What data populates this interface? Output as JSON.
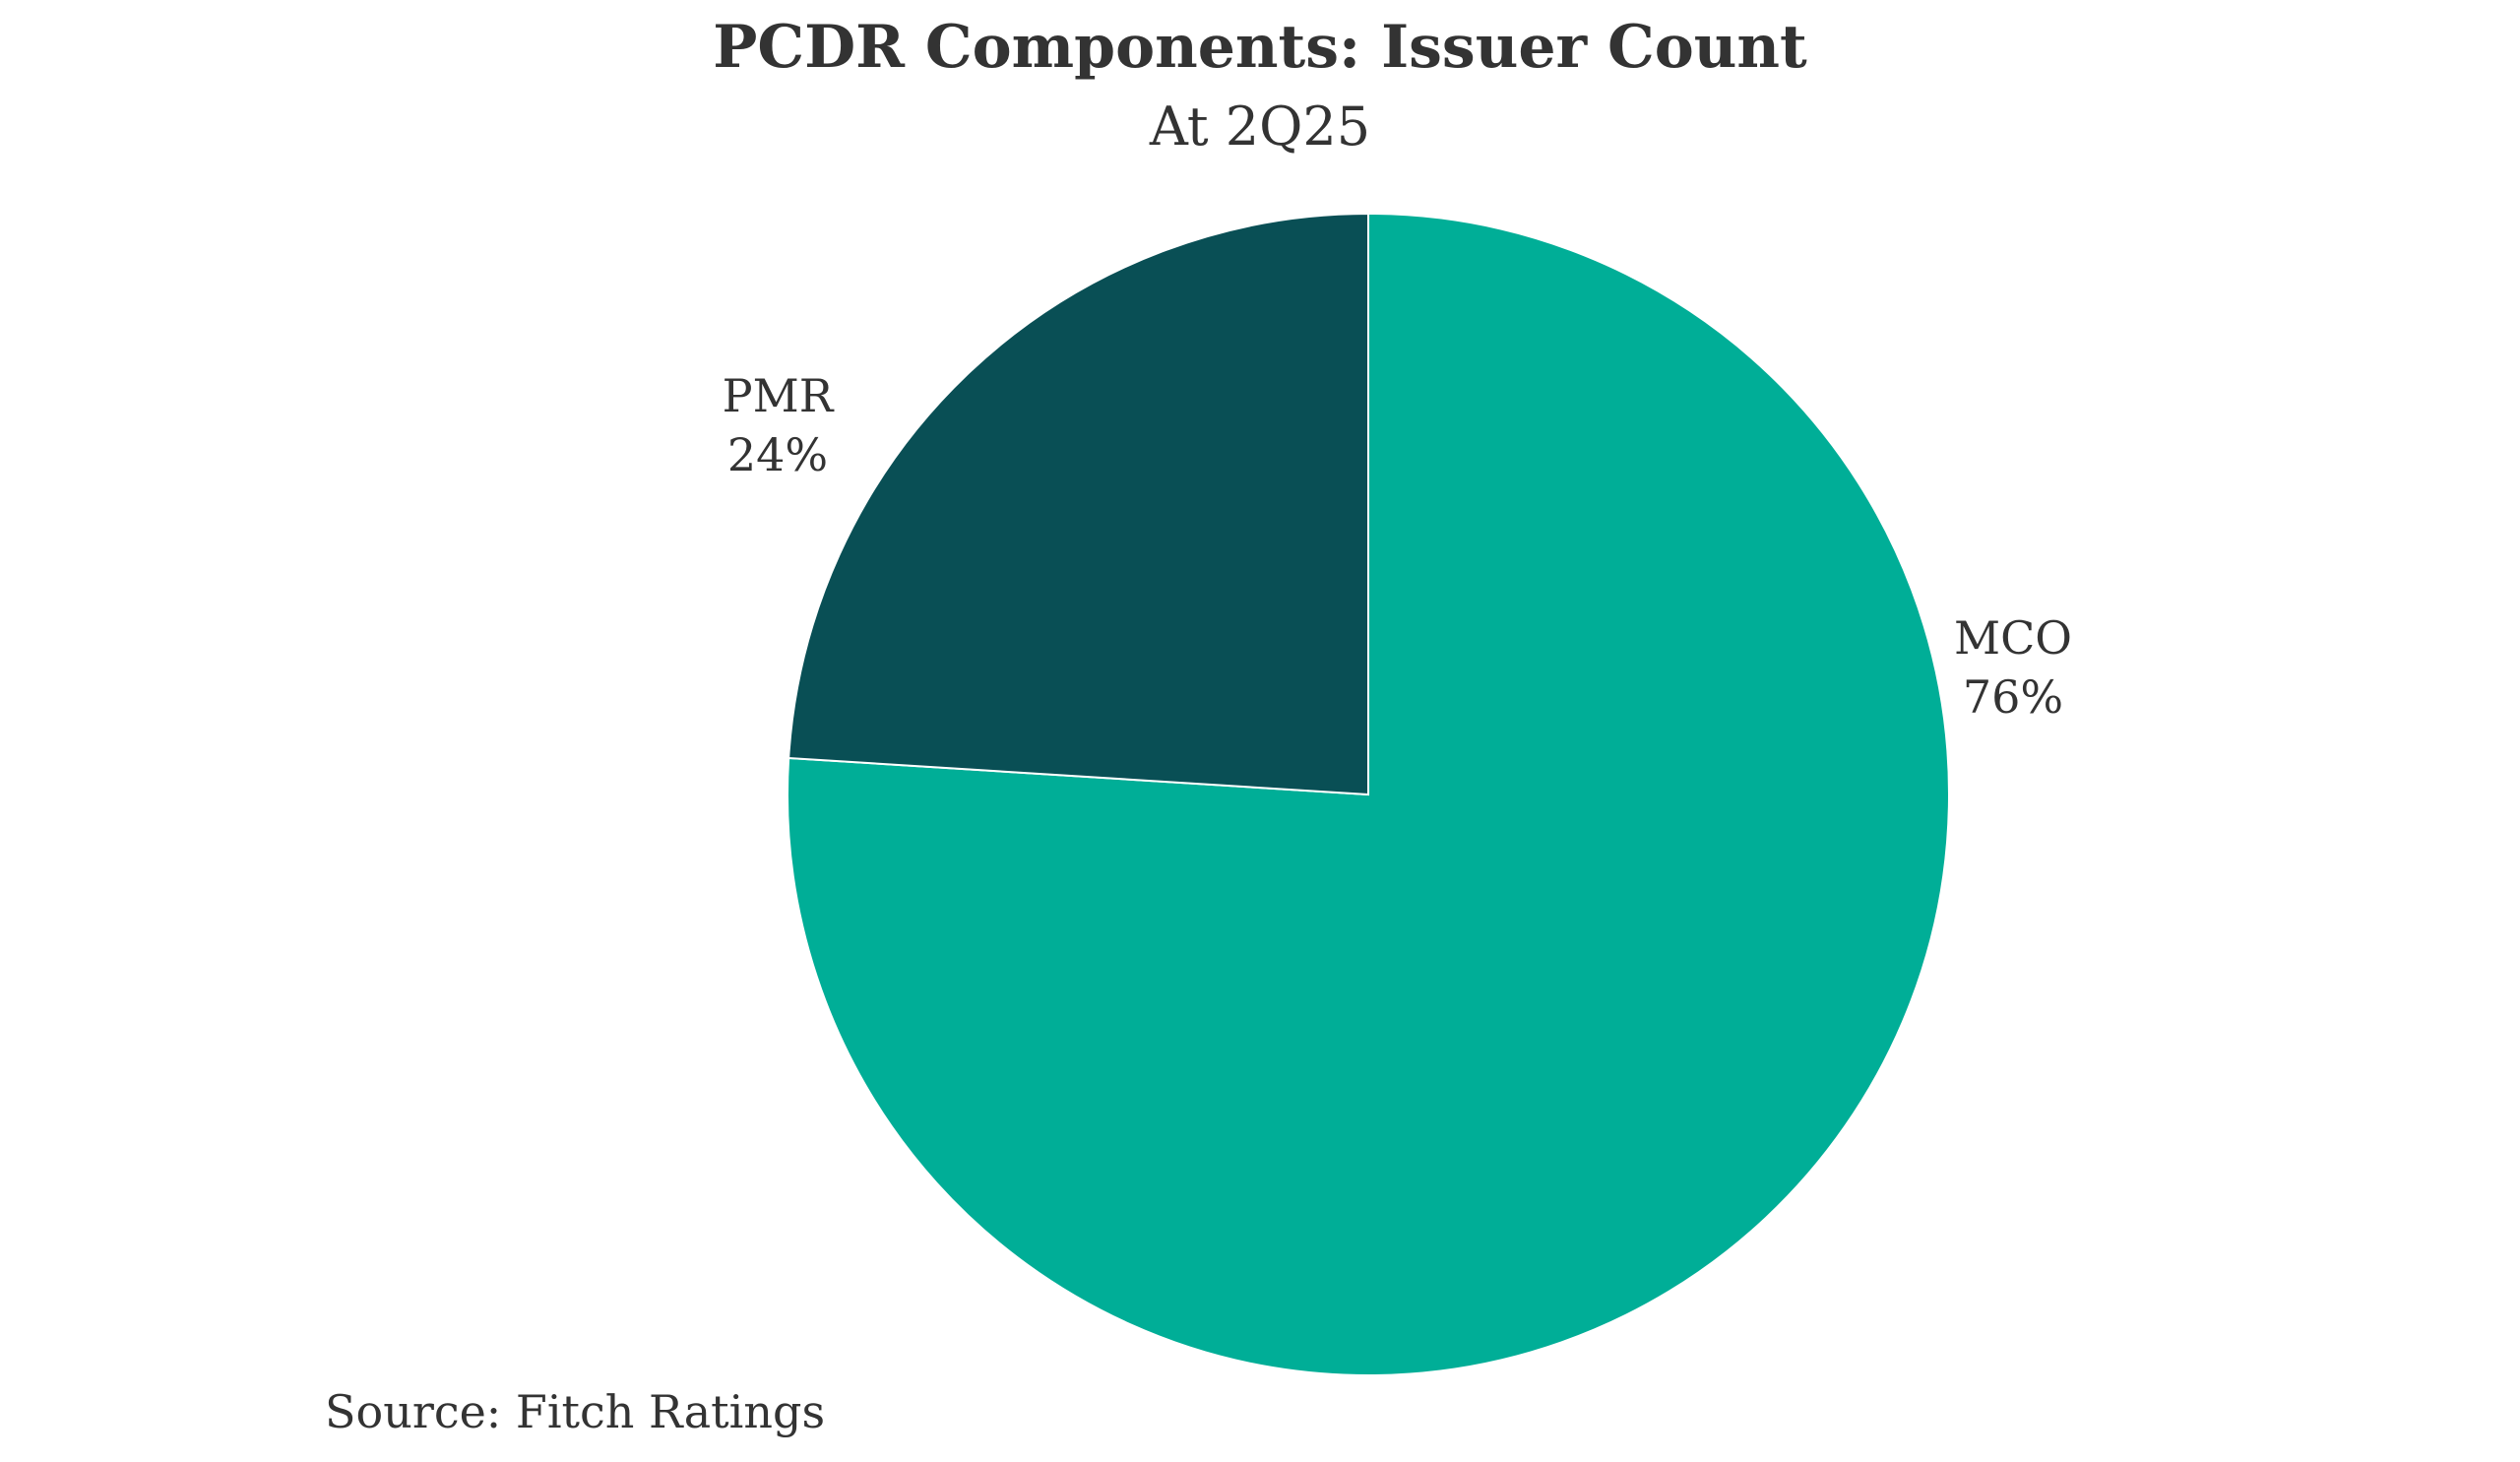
{
  "chart_data": {
    "type": "pie",
    "title": "PCDR Components: Issuer Count",
    "subtitle": "At 2Q25",
    "slices": [
      {
        "label": "MCO",
        "value": 76,
        "value_label": "76%",
        "color": "#00AE97"
      },
      {
        "label": "PMR",
        "value": 24,
        "value_label": "24%",
        "color": "#094F55"
      }
    ],
    "source": "Source: Fitch Ratings",
    "legend": "none",
    "start_angle": "12 o'clock",
    "direction": "clockwise"
  }
}
